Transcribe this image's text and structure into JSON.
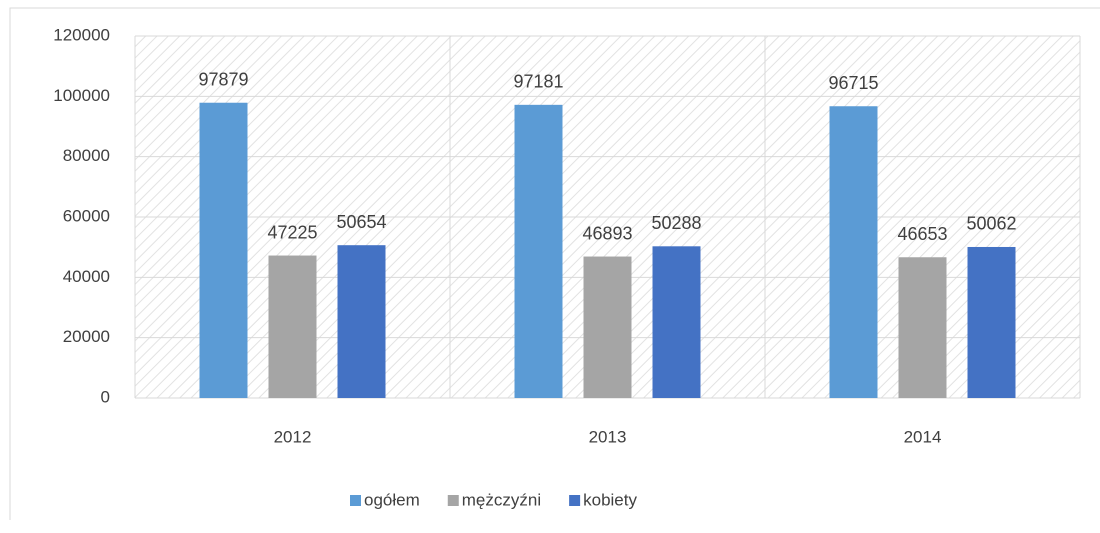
{
  "chart_data": {
    "type": "bar",
    "categories": [
      "2012",
      "2013",
      "2014"
    ],
    "series": [
      {
        "name": "ogółem",
        "color": "#5b9bd5",
        "values": [
          97879,
          97181,
          96715
        ]
      },
      {
        "name": "mężczyźni",
        "color": "#a5a5a5",
        "values": [
          47225,
          46893,
          46653
        ]
      },
      {
        "name": "kobiety",
        "color": "#4472c4",
        "values": [
          50654,
          50288,
          50062
        ]
      }
    ],
    "ylim": [
      0,
      120000
    ],
    "yticks": [
      0,
      20000,
      40000,
      60000,
      80000,
      100000,
      120000
    ],
    "grid": true,
    "legend": "bottom",
    "data_labels": true
  }
}
